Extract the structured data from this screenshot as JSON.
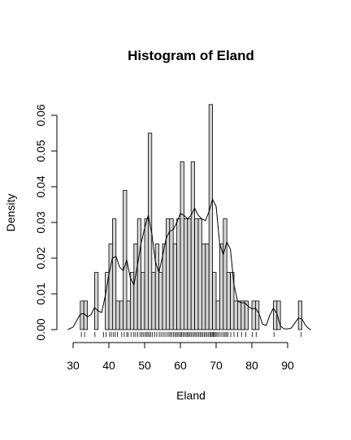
{
  "chart_data": {
    "type": "bar",
    "title": "Histogram of Eland",
    "xlabel": "Eland",
    "ylabel": "Density",
    "xlim": [
      29,
      96
    ],
    "ylim": [
      0,
      0.065
    ],
    "x_ticks": [
      30,
      40,
      50,
      60,
      70,
      80,
      90
    ],
    "y_ticks": [
      0.0,
      0.01,
      0.02,
      0.03,
      0.04,
      0.05,
      0.06
    ],
    "y_tick_labels": [
      "0.00",
      "0.01",
      "0.02",
      "0.03",
      "0.04",
      "0.05",
      "0.06"
    ],
    "bin_width": 1,
    "bin_start": 32,
    "densities": [
      0.008,
      0.008,
      0,
      0,
      0.016,
      0,
      0,
      0.016,
      0.024,
      0.031,
      0.008,
      0.008,
      0.039,
      0.008,
      0.016,
      0.024,
      0.031,
      0.016,
      0.031,
      0.055,
      0.016,
      0.024,
      0.016,
      0.024,
      0.031,
      0.031,
      0.024,
      0.031,
      0.047,
      0.031,
      0.031,
      0.047,
      0.031,
      0.031,
      0.024,
      0.024,
      0.063,
      0.016,
      0.008,
      0.024,
      0.031,
      0.016,
      0.016,
      0.008,
      0.008,
      0.008,
      0.008,
      0,
      0.008,
      0.008,
      0,
      0,
      0,
      0,
      0.008,
      0.008,
      0,
      0,
      0,
      0,
      0,
      0.008
    ],
    "density_curve": [
      [
        28.5,
        0.0
      ],
      [
        30,
        0.0007
      ],
      [
        31,
        0.0025
      ],
      [
        32,
        0.0043
      ],
      [
        33,
        0.0045
      ],
      [
        34,
        0.0036
      ],
      [
        35,
        0.0042
      ],
      [
        36,
        0.0062
      ],
      [
        37,
        0.0052
      ],
      [
        38,
        0.0048
      ],
      [
        39,
        0.0095
      ],
      [
        40,
        0.0155
      ],
      [
        41,
        0.02
      ],
      [
        42,
        0.0205
      ],
      [
        43,
        0.0175
      ],
      [
        44,
        0.0165
      ],
      [
        45,
        0.0195
      ],
      [
        46,
        0.0145
      ],
      [
        47,
        0.0125
      ],
      [
        48,
        0.018
      ],
      [
        49,
        0.024
      ],
      [
        50,
        0.0285
      ],
      [
        51,
        0.032
      ],
      [
        52,
        0.027
      ],
      [
        53,
        0.019
      ],
      [
        54,
        0.016
      ],
      [
        55,
        0.0205
      ],
      [
        56,
        0.0255
      ],
      [
        57,
        0.0275
      ],
      [
        58,
        0.028
      ],
      [
        59,
        0.03
      ],
      [
        60,
        0.0325
      ],
      [
        61,
        0.032
      ],
      [
        62,
        0.031
      ],
      [
        63,
        0.032
      ],
      [
        64,
        0.034
      ],
      [
        65,
        0.032
      ],
      [
        66,
        0.031
      ],
      [
        67,
        0.0305
      ],
      [
        68,
        0.033
      ],
      [
        69,
        0.0365
      ],
      [
        70,
        0.0345
      ],
      [
        71,
        0.024
      ],
      [
        72,
        0.021
      ],
      [
        73,
        0.0245
      ],
      [
        74,
        0.0225
      ],
      [
        75,
        0.0125
      ],
      [
        76,
        0.008
      ],
      [
        77,
        0.0075
      ],
      [
        78,
        0.0075
      ],
      [
        79,
        0.0065
      ],
      [
        80,
        0.0058
      ],
      [
        81,
        0.006
      ],
      [
        82,
        0.0045
      ],
      [
        83,
        0.0015
      ],
      [
        84,
        0.0012
      ],
      [
        85,
        0.004
      ],
      [
        86,
        0.006
      ],
      [
        87,
        0.0045
      ],
      [
        88,
        0.001
      ],
      [
        89,
        0.0002
      ],
      [
        90,
        0.0002
      ],
      [
        91,
        0.0004
      ],
      [
        92,
        0.0018
      ],
      [
        93,
        0.0032
      ],
      [
        94,
        0.003
      ],
      [
        95,
        0.0012
      ],
      [
        96,
        0.0002
      ],
      [
        96.5,
        0.0
      ]
    ],
    "rug": [
      32.3,
      33.2,
      36.1,
      38.5,
      39.2,
      40.2,
      40.7,
      41.3,
      41.8,
      42.4,
      43.6,
      44.3,
      45.0,
      45.4,
      46.2,
      47.0,
      47.5,
      48.1,
      48.7,
      49.2,
      49.6,
      50.1,
      50.5,
      50.9,
      51.3,
      51.7,
      52.2,
      52.8,
      53.4,
      54.1,
      54.6,
      55.2,
      55.7,
      56.3,
      56.8,
      57.2,
      57.6,
      58.1,
      58.5,
      58.9,
      59.3,
      59.7,
      60.1,
      60.4,
      60.8,
      61.2,
      61.6,
      62.0,
      62.3,
      62.7,
      63.1,
      63.5,
      63.9,
      64.3,
      64.7,
      65.1,
      65.5,
      65.9,
      66.3,
      66.7,
      67.1,
      67.5,
      67.9,
      68.3,
      68.6,
      68.9,
      69.2,
      69.5,
      69.8,
      70.2,
      70.6,
      71.1,
      71.6,
      72.1,
      72.5,
      72.9,
      73.3,
      74.1,
      75.0,
      76.0,
      77.1,
      78.3,
      80.1,
      81.2,
      86.2,
      93.8
    ]
  }
}
